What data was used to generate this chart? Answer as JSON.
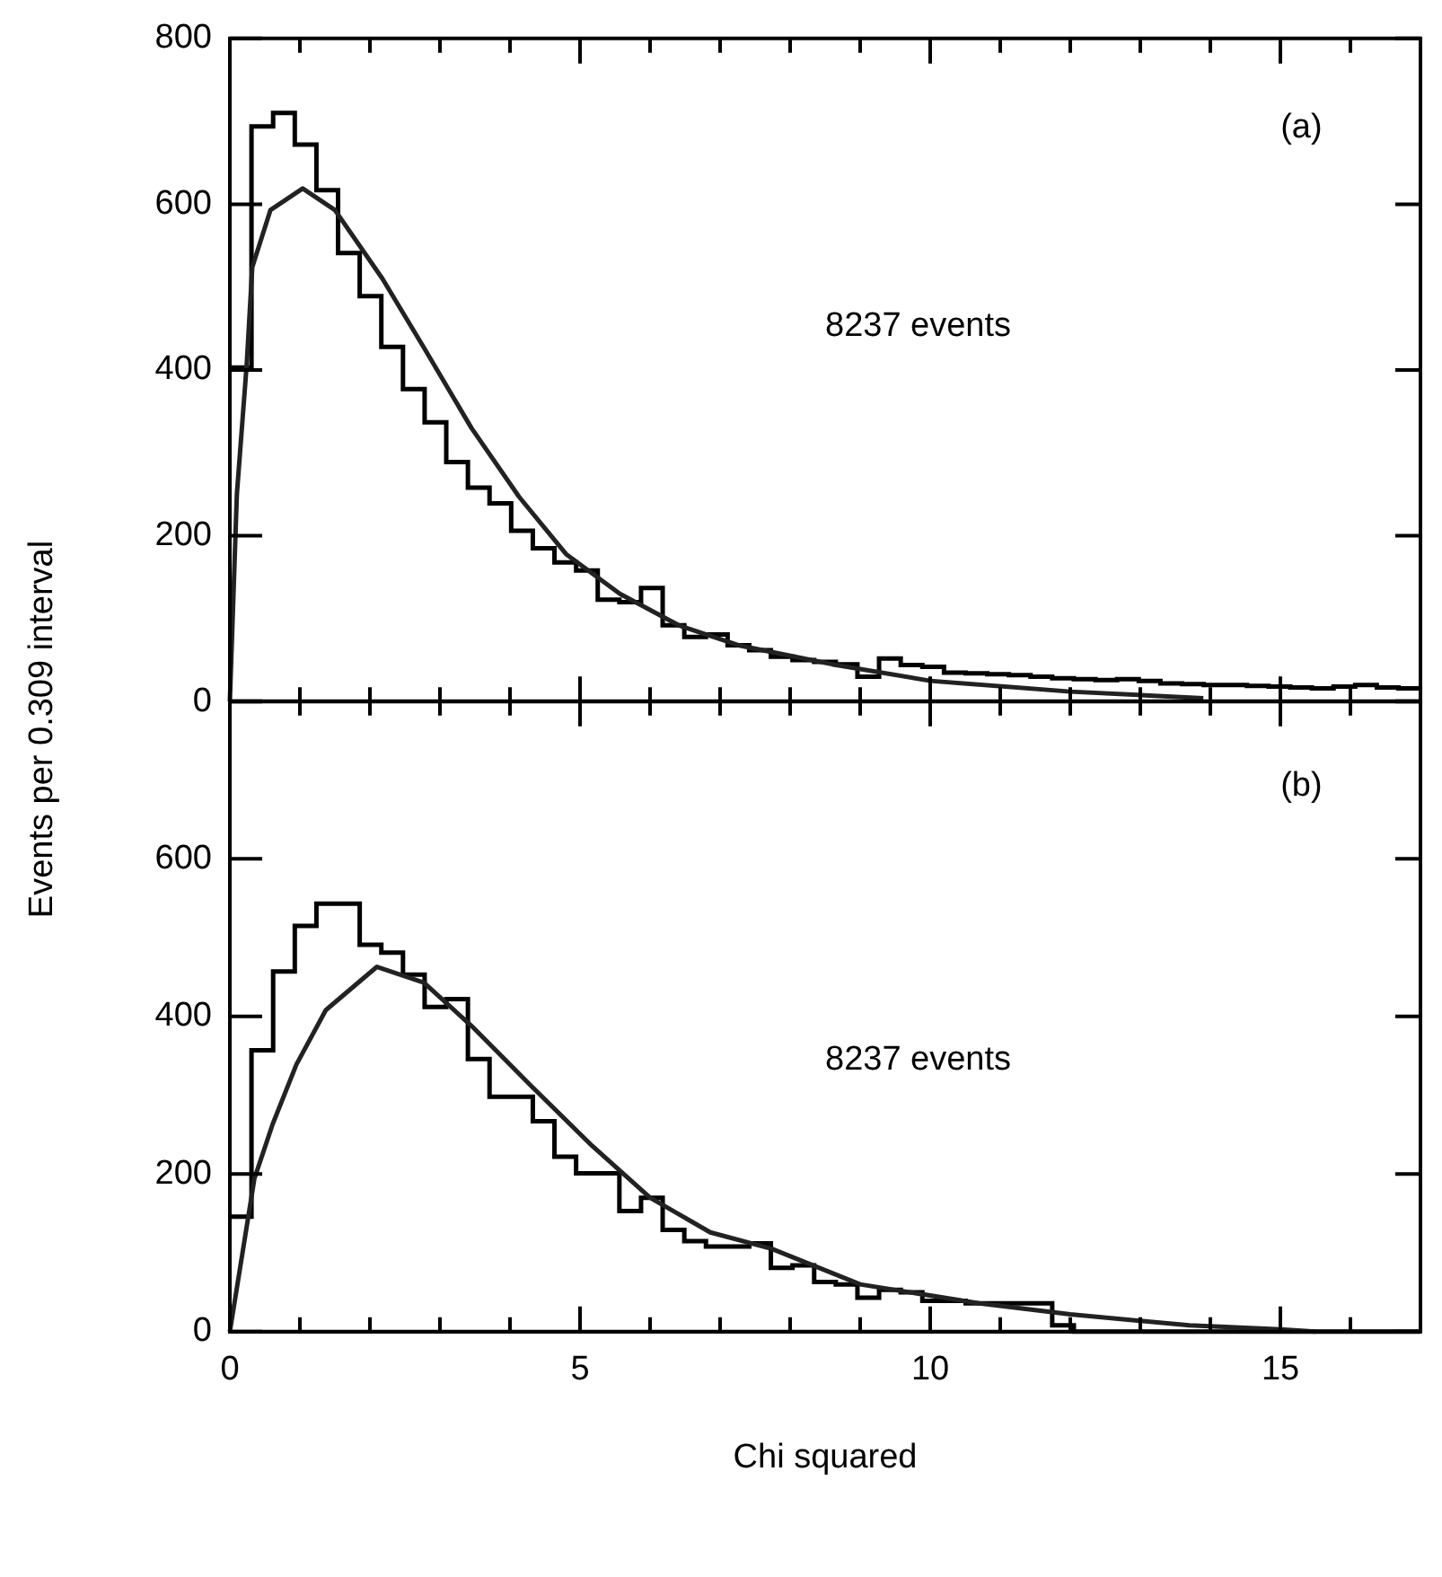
{
  "chart_data": [
    {
      "type": "histogram",
      "ylabel": "Events per 0.309 interval",
      "annotations": [
        "(a)",
        "8237 events"
      ],
      "tick_labels": "y",
      "bins": [
        0,
        0.309,
        0.618,
        0.927,
        1.236,
        1.545,
        1.854,
        2.163,
        2.472,
        2.781,
        3.09,
        3.399,
        3.708,
        4.017,
        4.326,
        4.635,
        4.944,
        5.253,
        5.562,
        5.871,
        6.18,
        6.489,
        6.798,
        7.107,
        7.416,
        7.725,
        8.034,
        8.343,
        8.652,
        8.961,
        9.27,
        9.579,
        9.888,
        10.197,
        10.506,
        10.815,
        11.124,
        11.433,
        11.742,
        12.051,
        12.36,
        12.669,
        12.978,
        13.287,
        13.596,
        13.905,
        14.214,
        14.523,
        14.832,
        15.141,
        15.45,
        15.759,
        16.068,
        16.377,
        16.686,
        16.995
      ],
      "series": [
        {
          "type": "histogram",
          "color": "#000000",
          "values": [
            403,
            694,
            710,
            672,
            617,
            541,
            489,
            428,
            377,
            337,
            289,
            258,
            239,
            206,
            185,
            168,
            158,
            123,
            120,
            137,
            92,
            78,
            81,
            68,
            62,
            54,
            50,
            48,
            45,
            30,
            52,
            44,
            42,
            35,
            34,
            33,
            32,
            30,
            28,
            27,
            26,
            27,
            25,
            22,
            21,
            20,
            20,
            19,
            18,
            17,
            16,
            18,
            20,
            17,
            16
          ]
        },
        {
          "type": "line",
          "color": "#222222",
          "x": [
            0,
            0.1,
            0.24,
            0.32,
            0.58,
            1.04,
            1.5,
            2.18,
            2.77,
            3.45,
            4.13,
            4.8,
            5.57,
            6.41,
            7.26,
            8.02,
            8.6,
            10,
            12,
            13.9
          ],
          "values": [
            0,
            250,
            406,
            524,
            593,
            619,
            593,
            510,
            427,
            330,
            247,
            178,
            130,
            92,
            68,
            55,
            45,
            25,
            12,
            4
          ]
        }
      ],
      "xlim": [
        0,
        17
      ],
      "xticks": [
        0,
        {
          "value": 1,
          "label": null
        },
        {
          "value": 2,
          "label": null
        },
        {
          "value": 3,
          "label": null
        },
        {
          "value": 4,
          "label": null
        },
        5,
        {
          "value": 6,
          "label": null
        },
        {
          "value": 7,
          "label": null
        },
        {
          "value": 8,
          "label": null
        },
        {
          "value": 9,
          "label": null
        },
        10,
        {
          "value": 11,
          "label": null
        },
        {
          "value": 12,
          "label": null
        },
        {
          "value": 13,
          "label": null
        },
        {
          "value": 14,
          "label": null
        },
        15,
        {
          "value": 16,
          "label": null
        },
        {
          "value": 17,
          "label": null
        }
      ],
      "ylim": [
        0,
        800
      ],
      "yticks": [
        0,
        200,
        400,
        600,
        800
      ]
    },
    {
      "type": "histogram",
      "xlabel": "Chi squared",
      "annotations": [
        "(b)",
        "8237 events"
      ],
      "bins": [
        0,
        0.309,
        0.618,
        0.927,
        1.236,
        1.545,
        1.854,
        2.163,
        2.472,
        2.781,
        3.09,
        3.399,
        3.708,
        4.017,
        4.326,
        4.635,
        4.944,
        5.253,
        5.562,
        5.871,
        6.18,
        6.489,
        6.798,
        7.107,
        7.416,
        7.725,
        8.034,
        8.343,
        8.652,
        8.961,
        9.27,
        9.579,
        9.888,
        10.197,
        10.506,
        10.815,
        11.124,
        11.433,
        11.742,
        12.051,
        12.36,
        12.669,
        12.978,
        13.287,
        13.596,
        13.905,
        14.214,
        14.523,
        14.832,
        15.141,
        15.45,
        15.759,
        16.068,
        16.377,
        16.686,
        16.995
      ],
      "series": [
        {
          "type": "histogram",
          "color": "#000000",
          "values": [
            146,
            357,
            457,
            515,
            543,
            543,
            491,
            481,
            453,
            412,
            422,
            346,
            298,
            298,
            267,
            222,
            201,
            201,
            153,
            170,
            129,
            115,
            108,
            108,
            112,
            81,
            84,
            63,
            60,
            43,
            53,
            50,
            39,
            39,
            36,
            36,
            36,
            36,
            8,
            0,
            0,
            0,
            0,
            0,
            0,
            0,
            0,
            0,
            0,
            0,
            0,
            0,
            0,
            0,
            0
          ]
        },
        {
          "type": "line",
          "color": "#222222",
          "x": [
            0,
            0.35,
            0.61,
            0.95,
            1.37,
            2.1,
            2.77,
            3.45,
            4.3,
            5.17,
            6.0,
            6.86,
            7.74,
            9.0,
            10.7,
            12,
            13.7,
            15,
            15.5
          ],
          "values": [
            0,
            194,
            263,
            339,
            408,
            463,
            443,
            388,
            312,
            236,
            170,
            126,
            105,
            60,
            36,
            22,
            8,
            3,
            0
          ]
        }
      ],
      "xlim": [
        0,
        17
      ],
      "xticks": [
        0,
        {
          "value": 1,
          "label": null
        },
        {
          "value": 2,
          "label": null
        },
        {
          "value": 3,
          "label": null
        },
        {
          "value": 4,
          "label": null
        },
        5,
        {
          "value": 6,
          "label": null
        },
        {
          "value": 7,
          "label": null
        },
        {
          "value": 8,
          "label": null
        },
        {
          "value": 9,
          "label": null
        },
        10,
        {
          "value": 11,
          "label": null
        },
        {
          "value": 12,
          "label": null
        },
        {
          "value": 13,
          "label": null
        },
        {
          "value": 14,
          "label": null
        },
        15,
        {
          "value": 16,
          "label": null
        },
        {
          "value": 17,
          "label": null
        }
      ],
      "ylim": [
        0,
        800
      ],
      "yticks": [
        0,
        200,
        400,
        600,
        {
          "value": 800,
          "label": null
        }
      ]
    }
  ]
}
